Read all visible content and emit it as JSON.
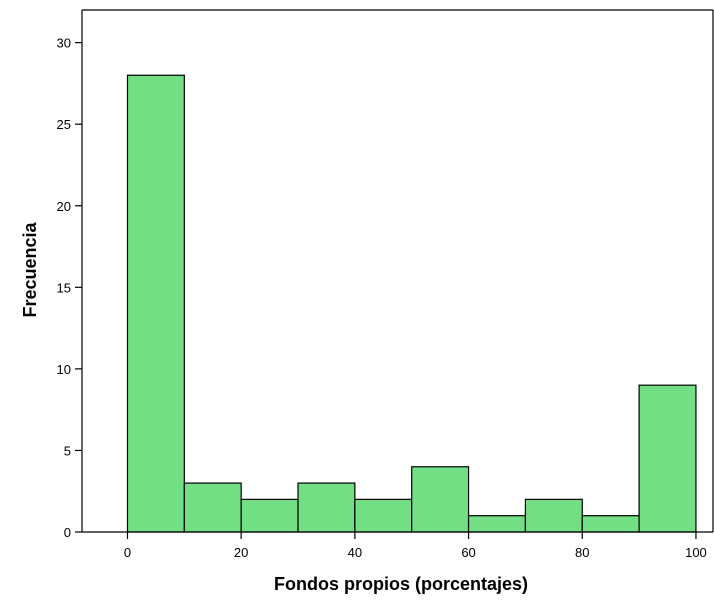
{
  "chart_data": {
    "type": "bar",
    "subtype": "histogram",
    "bin_edges": [
      0,
      10,
      20,
      30,
      40,
      50,
      60,
      70,
      80,
      90,
      100
    ],
    "values": [
      28,
      3,
      2,
      3,
      2,
      4,
      1,
      2,
      1,
      9
    ],
    "xlabel": "Fondos propios (porcentajes)",
    "ylabel": "Frecuencia",
    "xlim": [
      -8,
      103
    ],
    "ylim": [
      0,
      32
    ],
    "x_ticks": [
      0,
      20,
      40,
      60,
      80,
      100
    ],
    "y_ticks": [
      0,
      5,
      10,
      15,
      20,
      25,
      30
    ],
    "bar_color": "#73DF85",
    "bar_edge_color": "#000000",
    "grid": false,
    "legend": "none"
  }
}
